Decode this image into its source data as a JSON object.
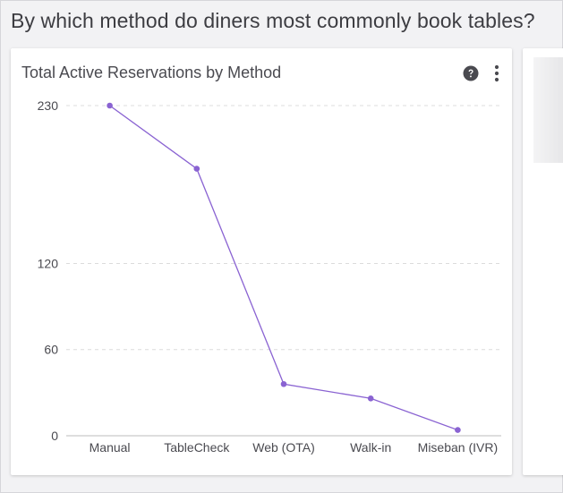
{
  "page": {
    "question": "By which method do diners most commonly book tables?"
  },
  "card": {
    "title": "Total Active Reservations by Method",
    "help_icon": "question-circle-icon",
    "menu_icon": "vertical-ellipsis-icon"
  },
  "colors": {
    "series": "#8a63d2",
    "grid": "#dcdcdc",
    "axis": "#bdbdbd"
  },
  "chart_data": {
    "type": "line",
    "title": "Total Active Reservations by Method",
    "categories": [
      "Manual",
      "TableCheck",
      "Web (OTA)",
      "Walk-in",
      "Miseban (IVR)"
    ],
    "series": [
      {
        "values": [
          230,
          186,
          36,
          26,
          4
        ]
      }
    ],
    "y_ticks": [
      0,
      60,
      120,
      230
    ],
    "ylim": [
      0,
      230
    ],
    "grid": true,
    "legend": "none"
  }
}
